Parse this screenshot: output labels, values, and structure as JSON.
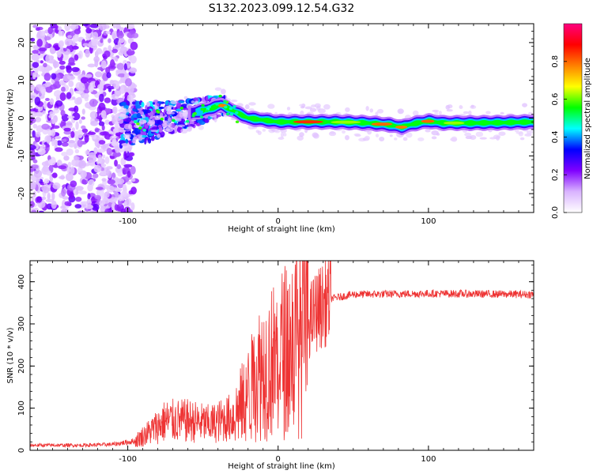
{
  "figure": {
    "title": "S132.2023.099.12.54.G32"
  },
  "chart_data": [
    {
      "type": "heatmap",
      "title": "S132.2023.099.12.54.G32",
      "xlabel": "Height of straight line (km)",
      "ylabel": "Frequency (Hz)",
      "xlim": [
        -165,
        170
      ],
      "ylim": [
        -25,
        25
      ],
      "x_ticks": [
        -100,
        0,
        100
      ],
      "y_ticks": [
        -20,
        -10,
        0,
        10,
        20
      ],
      "colorbar": {
        "label": "Normalized spectral amplitude",
        "range": [
          0,
          1
        ],
        "ticks": [
          "0.0",
          "0.2",
          "0.4",
          "0.6",
          "0.8"
        ],
        "tick_values": [
          0,
          0.2,
          0.4,
          0.6,
          0.8
        ],
        "colormap": [
          "#ffffff",
          "#d9b3ff",
          "#8000ff",
          "#0000ff",
          "#00ffff",
          "#00ff00",
          "#ffff00",
          "#ff8000",
          "#ff0000",
          "#ff0080"
        ]
      },
      "ridge": [
        {
          "x": -100,
          "y": -1.5
        },
        {
          "x": -85,
          "y": -1.0
        },
        {
          "x": -70,
          "y": 0.5
        },
        {
          "x": -55,
          "y": 1.5
        },
        {
          "x": -45,
          "y": 2.5
        },
        {
          "x": -38,
          "y": 3.5
        },
        {
          "x": -30,
          "y": 2.0
        },
        {
          "x": -20,
          "y": 0.0
        },
        {
          "x": -10,
          "y": -0.5
        },
        {
          "x": 0,
          "y": -1.0
        },
        {
          "x": 20,
          "y": -1.0
        },
        {
          "x": 40,
          "y": -1.0
        },
        {
          "x": 60,
          "y": -1.3
        },
        {
          "x": 75,
          "y": -1.8
        },
        {
          "x": 82,
          "y": -2.4
        },
        {
          "x": 90,
          "y": -1.5
        },
        {
          "x": 100,
          "y": -0.8
        },
        {
          "x": 110,
          "y": -1.3
        },
        {
          "x": 130,
          "y": -1.3
        },
        {
          "x": 150,
          "y": -1.2
        },
        {
          "x": 170,
          "y": -1.0
        }
      ]
    },
    {
      "type": "line",
      "xlabel": "Height of straight line (km)",
      "ylabel": "SNR (10 * v/v)",
      "xlim": [
        -165,
        170
      ],
      "ylim": [
        0,
        450
      ],
      "x_ticks": [
        -100,
        0,
        100
      ],
      "y_ticks": [
        0,
        100,
        200,
        300,
        400
      ],
      "color": "#ee3333",
      "envelope": [
        {
          "x": -165,
          "y": 12
        },
        {
          "x": -130,
          "y": 12
        },
        {
          "x": -110,
          "y": 14
        },
        {
          "x": -95,
          "y": 22
        },
        {
          "x": -85,
          "y": 45
        },
        {
          "x": -75,
          "y": 70
        },
        {
          "x": -60,
          "y": 70
        },
        {
          "x": -45,
          "y": 62
        },
        {
          "x": -30,
          "y": 80
        },
        {
          "x": -20,
          "y": 130
        },
        {
          "x": -12,
          "y": 190
        },
        {
          "x": -5,
          "y": 205
        },
        {
          "x": 5,
          "y": 240
        },
        {
          "x": 15,
          "y": 270
        },
        {
          "x": 25,
          "y": 330
        },
        {
          "x": 35,
          "y": 360
        },
        {
          "x": 50,
          "y": 370
        },
        {
          "x": 100,
          "y": 372
        },
        {
          "x": 170,
          "y": 370
        }
      ]
    }
  ]
}
